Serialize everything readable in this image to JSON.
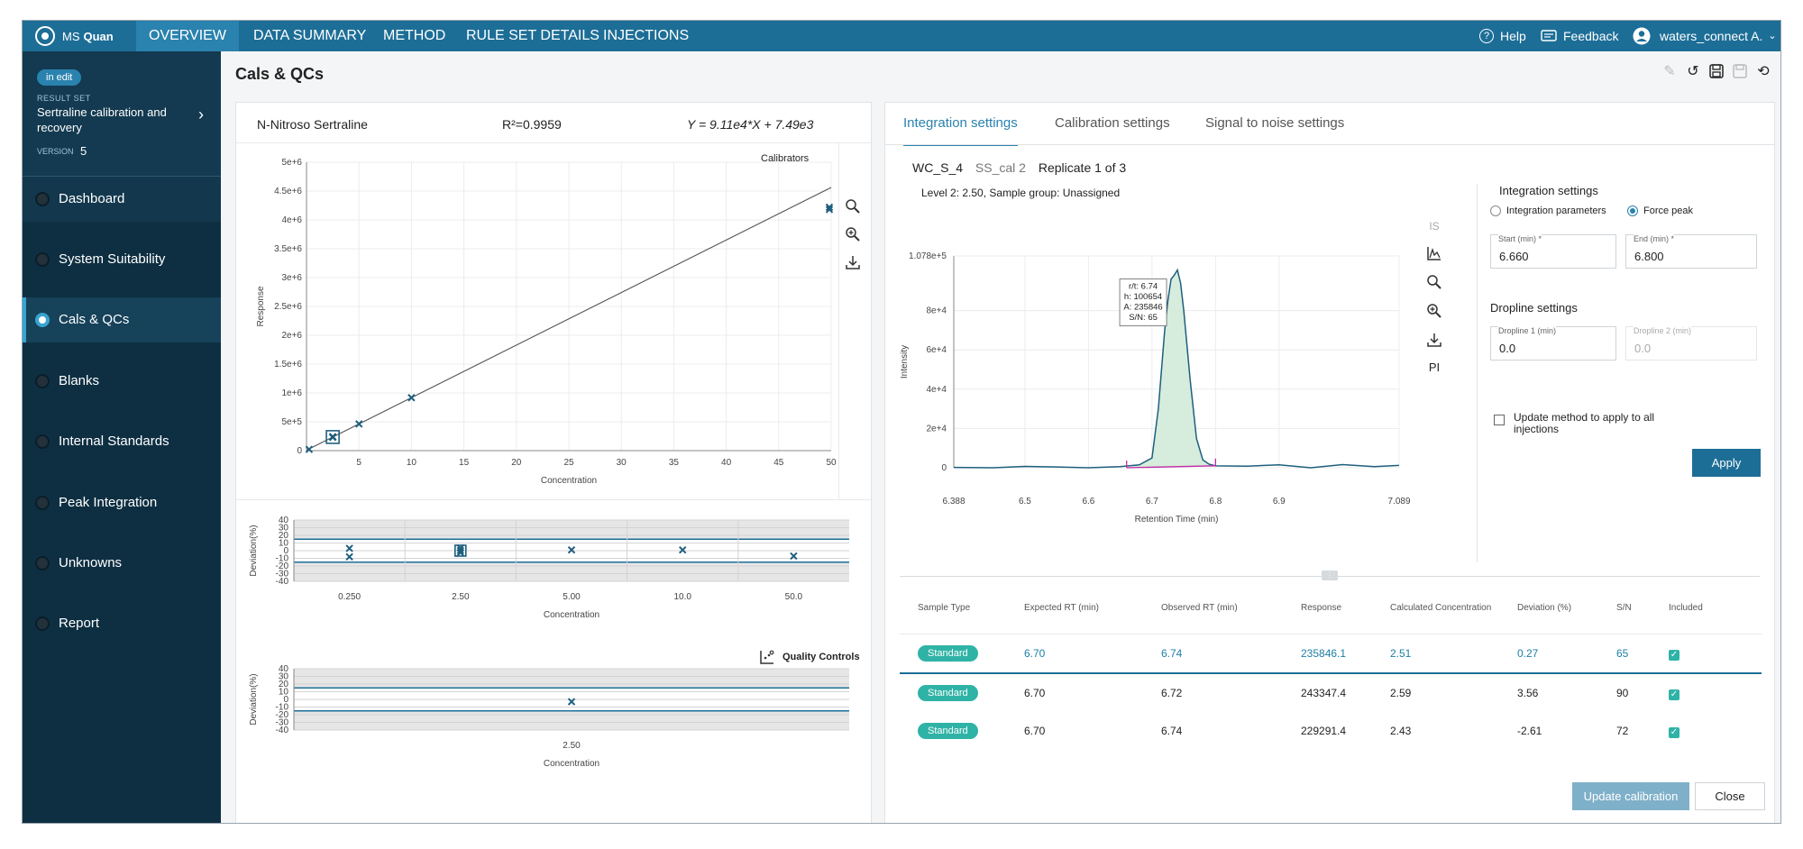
{
  "app": {
    "name_prefix": "MS",
    "name_bold": "Quan"
  },
  "nav": {
    "tabs": [
      "OVERVIEW",
      "DATA SUMMARY",
      "METHOD",
      "RULE SET DETAILS",
      "INJECTIONS"
    ],
    "active": "OVERVIEW"
  },
  "header_right": {
    "help": "Help",
    "feedback": "Feedback",
    "user": "waters_connect A."
  },
  "sidebar": {
    "status_badge": "in edit",
    "result_set_label": "RESULT SET",
    "result_set_name": "Sertraline calibration and recovery",
    "version_label": "VERSION",
    "version": "5",
    "items": [
      "Dashboard",
      "System Suitability",
      "Cals & QCs",
      "Blanks",
      "Internal Standards",
      "Peak Integration",
      "Unknowns",
      "Report"
    ],
    "active_item": "Cals & QCs"
  },
  "page": {
    "title": "Cals & QCs"
  },
  "calibration": {
    "compound": "N-Nitroso Sertraline",
    "r2": "R²=0.9959",
    "equation": "Y = 9.11e4*X + 7.49e3",
    "legend": "Calibrators",
    "quality_controls_label": "Quality Controls"
  },
  "right_panel": {
    "tabs": [
      "Integration settings",
      "Calibration settings",
      "Signal to noise settings"
    ],
    "active_tab": "Integration settings",
    "sample_id": "WC_S_4",
    "sample_name": "SS_cal 2",
    "replicate": "Replicate 1 of 3",
    "level_info": "Level 2: 2.50, Sample group: Unassigned",
    "chrom_tools": {
      "is_label": "IS",
      "pi_label": "PI"
    },
    "settings": {
      "title": "Integration settings",
      "radio_params": "Integration parameters",
      "radio_force": "Force peak",
      "start_label": "Start (min) *",
      "start_value": "6.660",
      "end_label": "End (min) *",
      "end_value": "6.800",
      "dropline_title": "Dropline settings",
      "dropline1_label": "Dropline 1 (min)",
      "dropline1_value": "0.0",
      "dropline2_label": "Dropline 2 (min)",
      "dropline2_value": "0.0",
      "update_method_label": "Update method to apply to all injections",
      "apply": "Apply"
    },
    "table": {
      "columns": [
        "Sample Type",
        "Expected RT (min)",
        "Observed RT (min)",
        "Response",
        "Calculated Concentration",
        "Deviation (%)",
        "S/N",
        "Included"
      ],
      "rows": [
        {
          "type": "Standard",
          "expected_rt": "6.70",
          "observed_rt": "6.74",
          "response": "235846.1",
          "conc": "2.51",
          "deviation": "0.27",
          "sn": "65",
          "included": true
        },
        {
          "type": "Standard",
          "expected_rt": "6.70",
          "observed_rt": "6.72",
          "response": "243347.4",
          "conc": "2.59",
          "deviation": "3.56",
          "sn": "90",
          "included": true
        },
        {
          "type": "Standard",
          "expected_rt": "6.70",
          "observed_rt": "6.74",
          "response": "229291.4",
          "conc": "2.43",
          "deviation": "-2.61",
          "sn": "72",
          "included": true
        }
      ]
    },
    "update_calibration": "Update calibration",
    "close": "Close"
  },
  "chart_data": [
    {
      "type": "scatter",
      "title": "",
      "xlabel": "Concentration",
      "ylabel": "Response",
      "xlim": [
        0,
        50
      ],
      "ylim": [
        0,
        5000000
      ],
      "xticks": [
        5,
        10,
        15,
        20,
        25,
        30,
        35,
        40,
        45,
        50
      ],
      "yticks": [
        "0",
        "5e+5",
        "1e+6",
        "1.5e+6",
        "2e+6",
        "2.5e+6",
        "3e+6",
        "3.5e+6",
        "4e+6",
        "4.5e+6",
        "5e+6"
      ],
      "legend": "Calibrators",
      "series": [
        {
          "name": "Calibrators",
          "x": [
            0.25,
            2.5,
            2.5,
            2.5,
            5,
            10,
            50,
            50
          ],
          "y": [
            23000,
            236000,
            243000,
            229000,
            463000,
            918000,
            4180000,
            4220000
          ]
        }
      ],
      "fit_line": {
        "slope": 91100,
        "intercept": 7490
      },
      "highlight": {
        "x": 2.5,
        "y": 236000
      }
    },
    {
      "type": "scatter",
      "xlabel": "Concentration",
      "ylabel": "Deviation(%)",
      "ylim": [
        -40,
        40
      ],
      "yticks": [
        "40",
        "30",
        "20",
        "10",
        "0",
        "-10",
        "-20",
        "-30",
        "-40"
      ],
      "categories": [
        "0.250",
        "2.50",
        "5.00",
        "10.0",
        "50.0"
      ],
      "limits": [
        15,
        -15
      ],
      "points": [
        {
          "cat": "0.250",
          "y": 3
        },
        {
          "cat": "0.250",
          "y": -8
        },
        {
          "cat": "2.50",
          "y": 0.27
        },
        {
          "cat": "2.50",
          "y": 3.56
        },
        {
          "cat": "2.50",
          "y": -2.61
        },
        {
          "cat": "5.00",
          "y": 1
        },
        {
          "cat": "10.0",
          "y": 1
        },
        {
          "cat": "50.0",
          "y": -7
        }
      ]
    },
    {
      "type": "scatter",
      "xlabel": "Concentration",
      "ylabel": "Deviation(%)",
      "ylim": [
        -40,
        40
      ],
      "yticks": [
        "40",
        "30",
        "20",
        "10",
        "0",
        "-10",
        "-20",
        "-30",
        "-40"
      ],
      "categories": [
        "2.50"
      ],
      "limits": [
        15,
        -15
      ],
      "points": [
        {
          "cat": "2.50",
          "y": -3
        }
      ]
    },
    {
      "type": "line",
      "xlabel": "Retention Time (min)",
      "ylabel": "Intensity",
      "xlim": [
        6.388,
        7.089
      ],
      "xticks": [
        "6.388",
        "6.5",
        "6.6",
        "6.7",
        "6.8",
        "6.9",
        "7.089"
      ],
      "ylim": [
        0,
        107800
      ],
      "yticks": [
        "0",
        "2e+4",
        "4e+4",
        "6e+4",
        "8e+4",
        "1.078e+5"
      ],
      "peak": {
        "rt": 6.74,
        "height": 100654,
        "area": 235846,
        "sn": 65,
        "start": 6.66,
        "end": 6.8
      },
      "tooltip": [
        "r/t: 6.74",
        "h: 100654",
        "A: 235846",
        "S/N: 65"
      ],
      "series": [
        {
          "x": [
            6.388,
            6.45,
            6.5,
            6.55,
            6.6,
            6.65,
            6.68,
            6.7,
            6.71,
            6.72,
            6.725,
            6.73,
            6.735,
            6.74,
            6.745,
            6.75,
            6.76,
            6.77,
            6.78,
            6.79,
            6.8,
            6.85,
            6.9,
            6.95,
            7.0,
            7.05,
            7.089
          ],
          "y": [
            200,
            0,
            700,
            400,
            0,
            600,
            1500,
            5000,
            30000,
            70000,
            85000,
            96000,
            98000,
            100654,
            94000,
            80000,
            45000,
            15000,
            4000,
            1800,
            1000,
            800,
            1500,
            0,
            1600,
            600,
            1200
          ]
        }
      ]
    }
  ]
}
